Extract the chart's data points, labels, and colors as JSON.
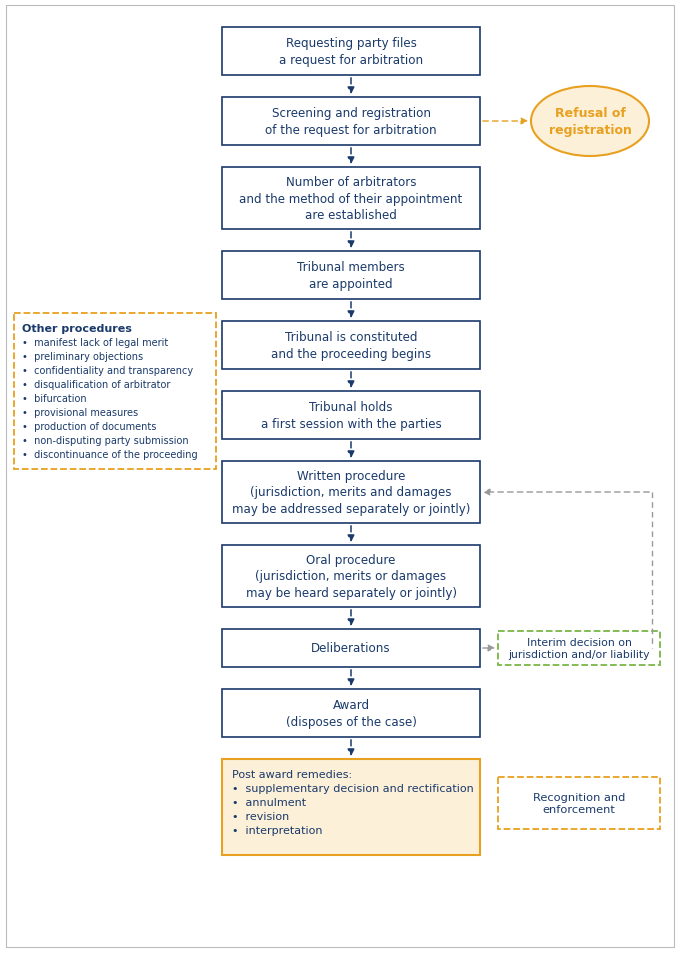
{
  "bg_color": "#ffffff",
  "main_blue": "#1a3a6b",
  "orange": "#e8a020",
  "green": "#7ab648",
  "gray_arrow": "#999999",
  "orange_fill": "#fdf0d8",
  "fig_w": 6.8,
  "fig_h": 9.54,
  "dpi": 100,
  "main_boxes": [
    {
      "label": "req",
      "text": "Requesting party files\na request for arbitration",
      "lines": 2
    },
    {
      "label": "screen",
      "text": "Screening and registration\nof the request for arbitration",
      "lines": 2
    },
    {
      "label": "num",
      "text": "Number of arbitrators\nand the method of their appointment\nare established",
      "lines": 3
    },
    {
      "label": "trib_appt",
      "text": "Tribunal members\nare appointed",
      "lines": 2
    },
    {
      "label": "trib_const",
      "text": "Tribunal is constituted\nand the proceeding begins",
      "lines": 2
    },
    {
      "label": "first",
      "text": "Tribunal holds\na first session with the parties",
      "lines": 2
    },
    {
      "label": "written",
      "text": "Written procedure\n(jurisdiction, merits and damages\nmay be addressed separately or jointly)",
      "lines": 3
    },
    {
      "label": "oral",
      "text": "Oral procedure\n(jurisdiction, merits or damages\nmay be heard separately or jointly)",
      "lines": 3
    },
    {
      "label": "delib",
      "text": "Deliberations",
      "lines": 1
    },
    {
      "label": "award",
      "text": "Award\n(disposes of the case)",
      "lines": 2
    }
  ],
  "post_box": {
    "text": "Post award remedies:\n•  supplementary decision and rectification\n•  annulment\n•  revision\n•  interpretation"
  },
  "other_box": {
    "title": "Other procedures",
    "items": [
      "•  manifest lack of legal merit",
      "•  preliminary objections",
      "•  confidentiality and transparency",
      "•  disqualification of arbitrator",
      "•  bifurcation",
      "•  provisional measures",
      "•  production of documents",
      "•  non-disputing party submission",
      "•  discontinuance of the proceeding"
    ]
  },
  "refusal_text": "Refusal of\nregistration",
  "interim_text": "Interim decision on\njurisdiction and/or liability",
  "recognition_text": "Recognition and\nenforcement"
}
